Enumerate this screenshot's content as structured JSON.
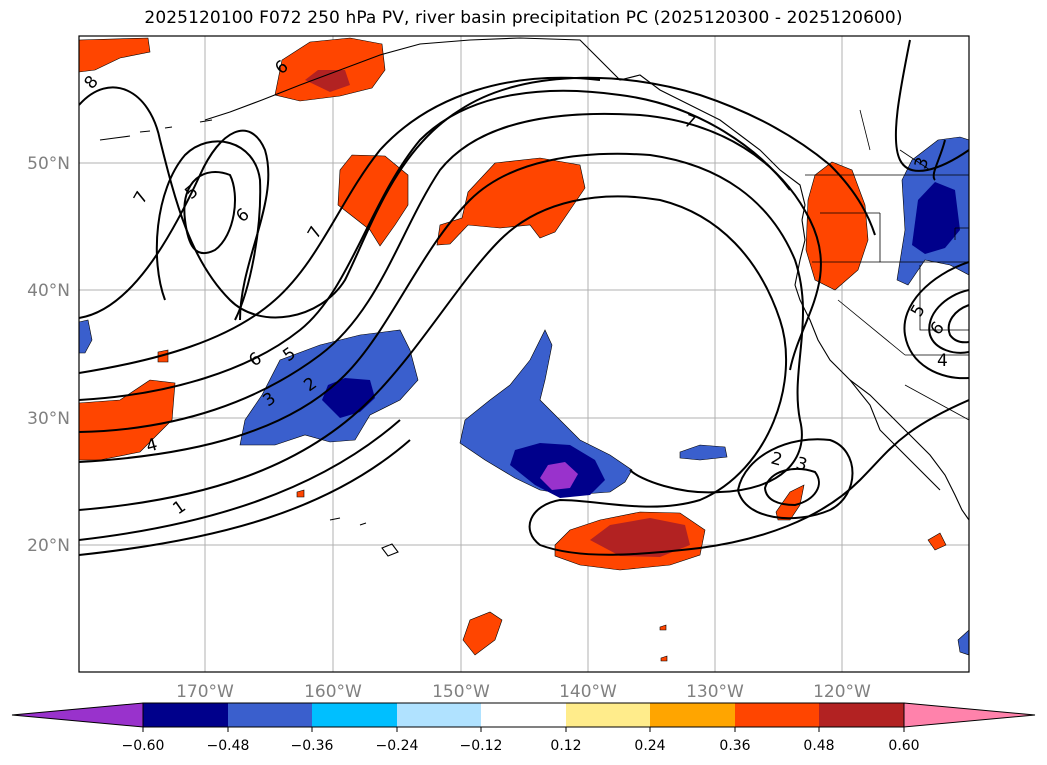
{
  "title": "2025120100 F072 250 hPa PV, river basin precipitation PC (2025120300 - 2025120600)",
  "map": {
    "lon_labels": [
      "170°W",
      "160°W",
      "150°W",
      "140°W",
      "130°W",
      "120°W"
    ],
    "lat_labels": [
      "50°N",
      "40°N",
      "30°N",
      "20°N"
    ],
    "pv_contour_labels": [
      "8",
      "6",
      "5",
      "6",
      "7",
      "7",
      "7",
      "6",
      "5",
      "3",
      "2",
      "4",
      "1",
      "2",
      "3",
      "3",
      "5",
      "6",
      "4"
    ]
  },
  "colorbar": {
    "tick_labels": [
      "−0.60",
      "−0.48",
      "−0.36",
      "−0.24",
      "−0.12",
      "0.12",
      "0.24",
      "0.36",
      "0.48",
      "0.60"
    ],
    "colors": [
      "#9932cc",
      "#00008b",
      "#3a5fcd",
      "#00bfff",
      "#b0e2ff",
      "#ffffff",
      "#ffec8b",
      "#ffa500",
      "#ff4500",
      "#b22222",
      "#ff82ab"
    ]
  }
}
